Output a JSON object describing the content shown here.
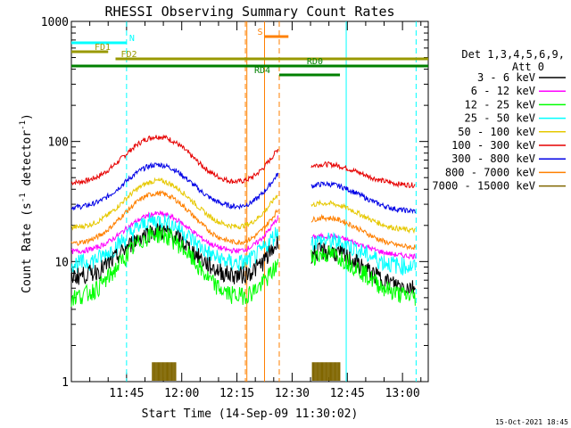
{
  "chart_data": {
    "type": "line",
    "title": "RHESSI Observing Summary Count Rates",
    "xlabel": "Start Time (14-Sep-09 11:30:02)",
    "ylabel_main": "Count Rate (s",
    "ylabel_sup": "-1",
    "ylabel_tail": " detector",
    "ylabel_sup2": "-1",
    "ylabel_end": ")",
    "yscale": "log",
    "ylim": [
      1,
      1000
    ],
    "xlim_minutes": [
      0,
      97
    ],
    "x_ticks": [
      {
        "t": 15,
        "label": "11:45"
      },
      {
        "t": 30,
        "label": "12:00"
      },
      {
        "t": 45,
        "label": "12:15"
      },
      {
        "t": 60,
        "label": "12:30"
      },
      {
        "t": 75,
        "label": "12:45"
      },
      {
        "t": 90,
        "label": "13:00"
      }
    ],
    "y_ticks": [
      {
        "v": 1,
        "label": "1"
      },
      {
        "v": 10,
        "label": "10"
      },
      {
        "v": 100,
        "label": "100"
      },
      {
        "v": 1000,
        "label": "1000"
      }
    ],
    "legend": {
      "position": "right",
      "header1": "Det 1,3,4,5,6,9,",
      "header2": "Att 0",
      "entries": [
        {
          "label": "3 - 6 keV",
          "color": "#000000"
        },
        {
          "label": "6 - 12 keV",
          "color": "#ff00ff"
        },
        {
          "label": "12 - 25 keV",
          "color": "#00ff00"
        },
        {
          "label": "25 - 50 keV",
          "color": "#00ffff"
        },
        {
          "label": "50 - 100 keV",
          "color": "#e6c800"
        },
        {
          "label": "100 - 300 keV",
          "color": "#e60000"
        },
        {
          "label": "300 - 800 keV",
          "color": "#0000e6"
        },
        {
          "label": "800 - 7000 keV",
          "color": "#ff8000"
        },
        {
          "label": "7000 - 15000 keV",
          "color": "#806600"
        }
      ]
    },
    "data_gap_minutes": [
      56.5,
      65
    ],
    "series": [
      {
        "name": "100 - 300 keV",
        "color": "#e60000",
        "base": 45,
        "peak": 110,
        "end": 95,
        "dip": 43
      },
      {
        "name": "300 - 800 keV",
        "color": "#0000e6",
        "base": 28,
        "peak": 64,
        "end": 65,
        "dip": 26
      },
      {
        "name": "50 - 100 keV",
        "color": "#e6c800",
        "base": 19,
        "peak": 47,
        "end": 45,
        "dip": 18
      },
      {
        "name": "800 - 7000 keV",
        "color": "#ff8000",
        "base": 14,
        "peak": 37,
        "end": 34,
        "dip": 13
      },
      {
        "name": "6 - 12 keV",
        "color": "#ff00ff",
        "base": 12,
        "peak": 25,
        "end": 24,
        "dip": 11
      },
      {
        "name": "25 - 50 keV",
        "color": "#00ffff",
        "base": 9.5,
        "peak": 22,
        "end": 22,
        "dip": 9
      },
      {
        "name": "3 - 6 keV",
        "color": "#000000",
        "base": 7.5,
        "peak": 18,
        "end": 18,
        "dip": 6
      },
      {
        "name": "12 - 25 keV",
        "color": "#00ff00",
        "base": 5,
        "peak": 17,
        "end": 17,
        "dip": 5
      }
    ],
    "bars": [
      {
        "label": "N",
        "color": "#00ffff",
        "x0": 0,
        "x1": 15,
        "y": 1
      },
      {
        "label": "FD1",
        "color": "#999900",
        "x0": 0,
        "x1": 10,
        "y": 2
      },
      {
        "label": "S",
        "color": "#ff8000",
        "x0": 52.5,
        "x1": 59,
        "y": 0
      },
      {
        "label": "FD2",
        "color": "#999900",
        "x0": 12,
        "x1": 97,
        "y": 3
      },
      {
        "label": "RD0",
        "color": "#008000",
        "x0": 0,
        "x1": 97,
        "y": 4
      },
      {
        "label": "RD4",
        "color": "#008000",
        "x0": 56.5,
        "x1": 73,
        "y": 5
      }
    ],
    "vertical_lines": [
      {
        "t": 15,
        "color": "#00ffff",
        "dash": true
      },
      {
        "t": 47.3,
        "color": "#ff8000",
        "dash": true
      },
      {
        "t": 47.7,
        "color": "#ff8000",
        "dash": false
      },
      {
        "t": 52.5,
        "color": "#ff8000",
        "dash": false
      },
      {
        "t": 56.5,
        "color": "#ff8000",
        "dash": true
      },
      {
        "t": 74.7,
        "color": "#00ffff",
        "dash": false
      },
      {
        "t": 93.7,
        "color": "#00ffff",
        "dash": true
      }
    ],
    "attenuator_blocks": [
      {
        "t0": 22,
        "t1": 28.5
      },
      {
        "t0": 65.5,
        "t1": 73
      }
    ],
    "footer_date": "15-Oct-2021 18:45"
  }
}
